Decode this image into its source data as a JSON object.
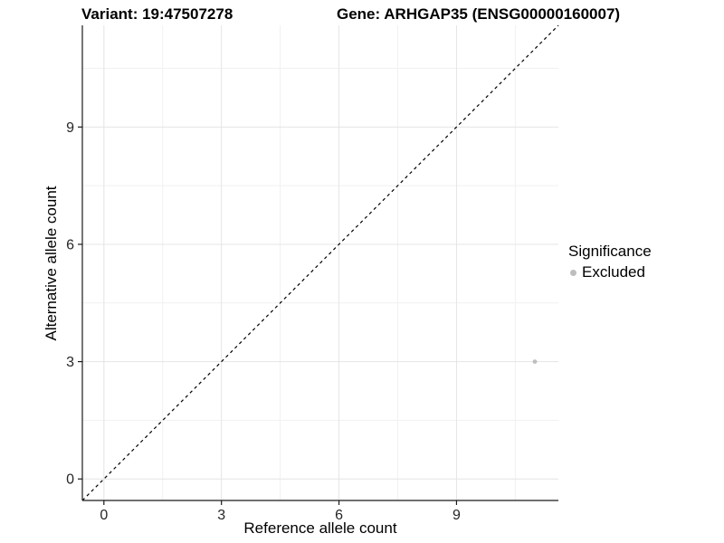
{
  "titles": {
    "variant": "Variant: 19:47507278",
    "gene": "Gene: ARHGAP35 (ENSG00000160007)"
  },
  "chart_data": {
    "type": "scatter",
    "xlabel": "Reference allele count",
    "ylabel": "Alternative allele count",
    "xlim": [
      -0.55,
      11.6
    ],
    "ylim": [
      -0.55,
      11.6
    ],
    "x_ticks": [
      0,
      3,
      6,
      9
    ],
    "y_ticks": [
      0,
      3,
      6,
      9
    ],
    "x_minor_ticks": [
      1.5,
      4.5,
      7.5,
      10.5
    ],
    "y_minor_ticks": [
      1.5,
      4.5,
      7.5,
      10.5
    ],
    "grid": true,
    "identity_line": {
      "style": "dashed",
      "color": "#000000",
      "equation": "y = x"
    },
    "series": [
      {
        "name": "Excluded",
        "color": "#bebebe",
        "points": [
          {
            "x": 11,
            "y": 3
          }
        ]
      }
    ],
    "legend": {
      "title": "Significance",
      "position": "right",
      "items": [
        {
          "label": "Excluded",
          "color": "#bebebe"
        }
      ]
    },
    "colors": {
      "axis_line": "#1a1a1a",
      "tick_label": "#262626",
      "grid_major": "#e4e4e4",
      "grid_minor": "#f1f1f1",
      "background": "#ffffff"
    }
  }
}
